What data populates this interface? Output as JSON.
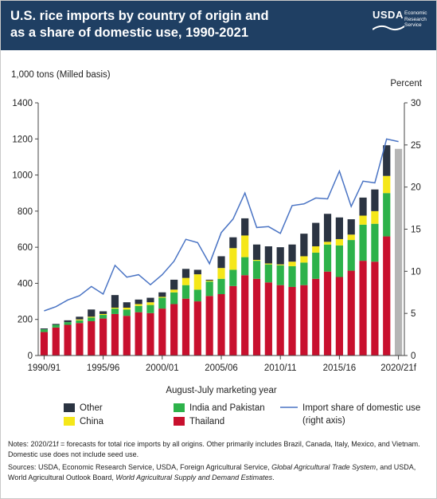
{
  "header": {
    "title_line1": "U.S. rice imports by country of origin and",
    "title_line2": "as a share of domestic use, 1990-2021",
    "logo_text": "USDA",
    "logo_subtitle": "Economic Research Service"
  },
  "colors": {
    "header_bg": "#1f3f63",
    "thailand": "#c8102e",
    "india_pakistan": "#2db24a",
    "china": "#f5e719",
    "other": "#2b3442",
    "share_line": "#4a74c4",
    "forecast": "#b5b5b5"
  },
  "chart_data": {
    "type": "bar",
    "stacked": true,
    "xlabel": "August-July marketing year",
    "ylabel": "1,000 tons (Milled basis)",
    "ylabel_right": "Percent",
    "ylim": [
      0,
      1400
    ],
    "ylim_right": [
      0,
      30
    ],
    "yticks": [
      0,
      200,
      400,
      600,
      800,
      1000,
      1200,
      1400
    ],
    "yticks_labels": [
      "0",
      "200",
      "400",
      "600",
      "800",
      "1000",
      "1200",
      "1400"
    ],
    "yticks_right": [
      0,
      5,
      10,
      15,
      20,
      25,
      30
    ],
    "categories": [
      "1990/91",
      "1991/92",
      "1992/93",
      "1993/94",
      "1994/95",
      "1995/96",
      "1996/97",
      "1997/98",
      "1998/99",
      "1999/00",
      "2000/01",
      "2001/02",
      "2002/03",
      "2003/04",
      "2004/05",
      "2005/06",
      "2006/07",
      "2007/08",
      "2008/09",
      "2009/10",
      "2010/11",
      "2011/12",
      "2012/13",
      "2013/14",
      "2014/15",
      "2015/16",
      "2016/17",
      "2017/18",
      "2018/19",
      "2019/20",
      "2020/21f"
    ],
    "xtick_labels": [
      {
        "index": 0,
        "label": "1990/91"
      },
      {
        "index": 5,
        "label": "1995/96"
      },
      {
        "index": 10,
        "label": "2000/01"
      },
      {
        "index": 15,
        "label": "2005/06"
      },
      {
        "index": 20,
        "label": "2010/11"
      },
      {
        "index": 25,
        "label": "2015/16"
      },
      {
        "index": 30,
        "label": "2020/21f"
      }
    ],
    "series": [
      {
        "name": "Thailand",
        "color": "#c8102e",
        "values": [
          130,
          155,
          170,
          180,
          190,
          205,
          230,
          220,
          240,
          235,
          260,
          285,
          315,
          300,
          330,
          340,
          385,
          445,
          425,
          405,
          390,
          380,
          390,
          425,
          465,
          435,
          470,
          525,
          520,
          660,
          null
        ]
      },
      {
        "name": "India and Pakistan",
        "color": "#2db24a",
        "values": [
          15,
          15,
          15,
          15,
          20,
          20,
          30,
          35,
          35,
          45,
          60,
          65,
          75,
          65,
          80,
          85,
          90,
          100,
          100,
          100,
          110,
          115,
          125,
          145,
          150,
          175,
          170,
          200,
          210,
          240,
          null
        ]
      },
      {
        "name": "China",
        "color": "#f5e719",
        "values": [
          0,
          0,
          0,
          5,
          5,
          5,
          5,
          10,
          10,
          15,
          5,
          15,
          40,
          85,
          5,
          60,
          120,
          120,
          5,
          5,
          5,
          25,
          35,
          35,
          15,
          35,
          30,
          50,
          70,
          95,
          null
        ]
      },
      {
        "name": "Other",
        "color": "#2b3442",
        "values": [
          5,
          5,
          10,
          15,
          40,
          15,
          70,
          30,
          25,
          25,
          25,
          55,
          50,
          25,
          5,
          65,
          60,
          95,
          85,
          95,
          95,
          95,
          125,
          130,
          155,
          120,
          85,
          100,
          120,
          170,
          null
        ]
      }
    ],
    "forecast": {
      "name": "2020/21f total forecast",
      "color": "#b5b5b5",
      "values": [
        null,
        null,
        null,
        null,
        null,
        null,
        null,
        null,
        null,
        null,
        null,
        null,
        null,
        null,
        null,
        null,
        null,
        null,
        null,
        null,
        null,
        null,
        null,
        null,
        null,
        null,
        null,
        null,
        null,
        null,
        1145
      ]
    },
    "share_line": {
      "name": "Import share of domestic use (right axis)",
      "color": "#4a74c4",
      "values": [
        5.3,
        5.8,
        6.6,
        7.1,
        8.2,
        7.3,
        10.7,
        9.3,
        9.6,
        8.4,
        9.6,
        11.2,
        13.8,
        13.4,
        10.9,
        14.6,
        16.2,
        19.3,
        15.2,
        15.3,
        14.5,
        17.8,
        18.0,
        18.7,
        18.6,
        21.9,
        17.7,
        20.7,
        20.5,
        25.7,
        25.4
      ]
    },
    "legend": {
      "placement": "bottom",
      "items": [
        {
          "label": "Other",
          "color": "#2b3442",
          "kind": "box"
        },
        {
          "label": "India and Pakistan",
          "color": "#2db24a",
          "kind": "box"
        },
        {
          "label": "Import share of domestic use",
          "label2": "(right axis)",
          "color": "#4a74c4",
          "kind": "line"
        },
        {
          "label": "China",
          "color": "#f5e719",
          "kind": "box"
        },
        {
          "label": "Thailand",
          "color": "#c8102e",
          "kind": "box"
        }
      ]
    },
    "grid": false
  },
  "notes": {
    "notes_text": "Notes: 2020/21f = forecasts for total rice imports by all origins. Other primarily includes Brazil, Canada, Italy, Mexico, and Vietnam. Domestic use does not include seed use.",
    "sources_prefix": "Sources: USDA, Economic Research Service, USDA, Foreign Agricultural Service, ",
    "sources_italic1": "Global Agricultural Trade System",
    "sources_mid": ", and USDA, World Agricultural Outlook Board, ",
    "sources_italic2": "World Agricultural Supply and Demand Estimates",
    "sources_end": "."
  }
}
